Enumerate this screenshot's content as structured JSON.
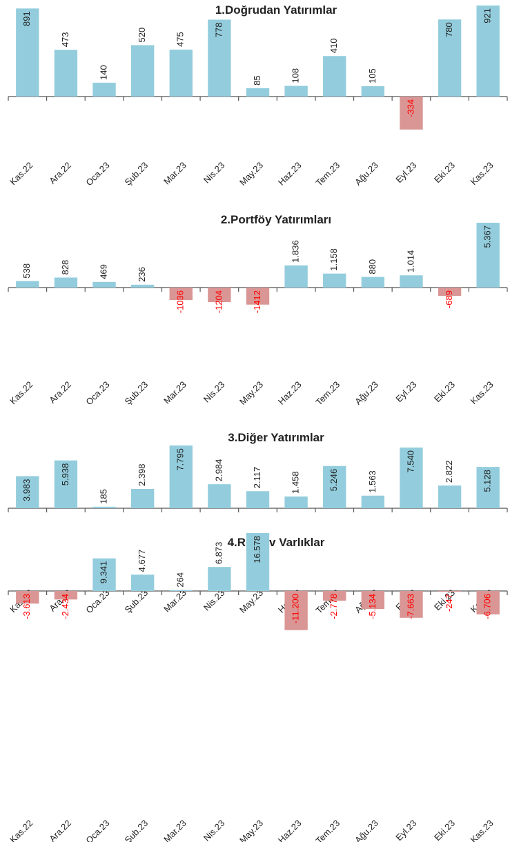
{
  "chart_data": [
    {
      "type": "bar",
      "title": "1.Doğrudan Yatırımlar",
      "color": "#93cddd",
      "negative_color": "#d99694",
      "negative_label_color": "#ff0000",
      "categories": [
        "Kas.22",
        "Ara.22",
        "Oca.23",
        "Şub.23",
        "Mar.23",
        "Nis.23",
        "May.23",
        "Haz.23",
        "Tem.23",
        "Ağu.23",
        "Eyl.23",
        "Eki.23",
        "Kas.23"
      ],
      "values": [
        891,
        473,
        140,
        520,
        475,
        778,
        85,
        108,
        410,
        105,
        -334,
        780,
        921
      ]
    },
    {
      "type": "bar",
      "title": "2.Portföy Yatırımları",
      "color": "#93cddd",
      "negative_color": "#d99694",
      "negative_label_color": "#ff0000",
      "categories": [
        "Kas.22",
        "Ara.22",
        "Oca.23",
        "Şub.23",
        "Mar.23",
        "Nis.23",
        "May.23",
        "Haz.23",
        "Tem.23",
        "Ağu.23",
        "Eyl.23",
        "Eki.23",
        "Kas.23"
      ],
      "values": [
        538,
        828,
        469,
        236,
        -1036,
        -1204,
        -1412,
        1836,
        1158,
        880,
        1014,
        -689,
        5367
      ],
      "value_labels": [
        "538",
        "828",
        "469",
        "236",
        "-1036",
        "-1204",
        "-1412",
        "1.836",
        "1.158",
        "880",
        "1.014",
        "-689",
        "5.367"
      ]
    },
    {
      "type": "bar",
      "title": "3.Diğer Yatırımlar",
      "color": "#93cddd",
      "negative_color": "#d99694",
      "negative_label_color": "#ff0000",
      "categories": [
        "Kas.22",
        "Ara.22",
        "Oca.23",
        "Şub.23",
        "Mar.23",
        "Nis.23",
        "May.23",
        "Haz.23",
        "Tem.23",
        "Ağu.23",
        "Eyl.23",
        "Eki.23",
        "Kas.23"
      ],
      "values": [
        3983,
        5938,
        185,
        2398,
        7795,
        2984,
        2117,
        1458,
        5246,
        1563,
        7540,
        2822,
        5128
      ],
      "value_labels": [
        "3.983",
        "5.938",
        "185",
        "2.398",
        "7.795",
        "2.984",
        "2.117",
        "1.458",
        "5.246",
        "1.563",
        "7.540",
        "2.822",
        "5.128"
      ]
    },
    {
      "type": "bar",
      "title": "4.Rezerv Varlıklar",
      "color": "#93cddd",
      "negative_color": "#d99694",
      "negative_label_color": "#ff0000",
      "categories": [
        "Kas.22",
        "Ara.22",
        "Oca.23",
        "Şub.23",
        "Mar.23",
        "Nis.23",
        "May.23",
        "Haz.23",
        "Tem.23",
        "Ağu.23",
        "Eyl.23",
        "Eki.23",
        "Kas.23"
      ],
      "values": [
        -3613,
        -2434,
        9341,
        4677,
        264,
        6873,
        16578,
        -11200,
        -2778,
        -5134,
        -7663,
        -247,
        -6706
      ],
      "value_labels": [
        "-3.613",
        "-2.434",
        "9.341",
        "4.677",
        "264",
        "6.873",
        "16.578",
        "-11.200",
        "-2.778",
        "-5.134",
        "-7.663",
        "-247",
        "-6.706"
      ]
    }
  ]
}
